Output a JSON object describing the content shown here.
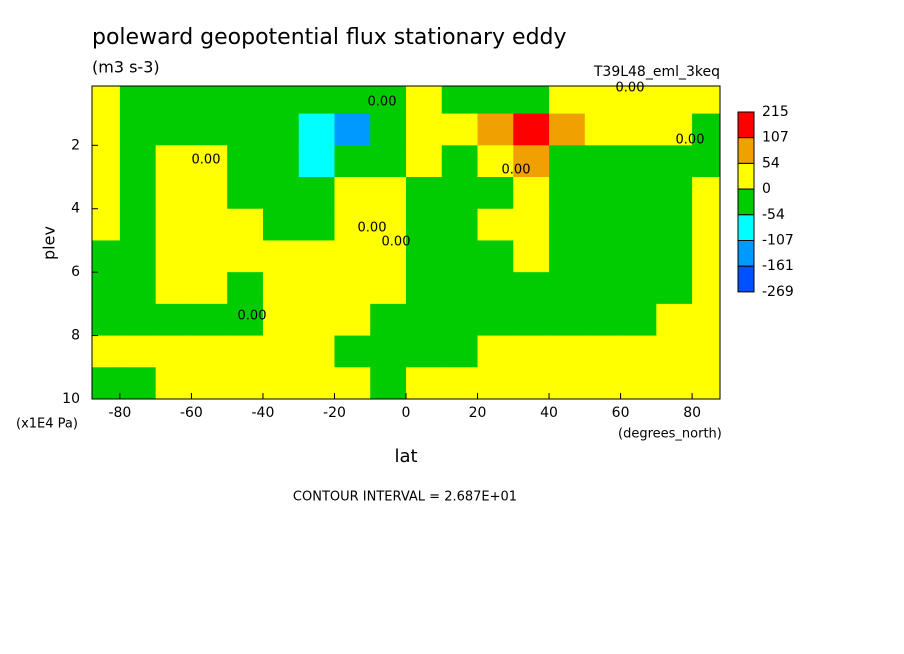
{
  "chart_data": {
    "type": "contour",
    "title": "poleward geopotential flux stationary eddy",
    "units": "(m3 s-3)",
    "dataset": "T39L48_eml_3keq",
    "xlabel": "lat",
    "ylabel": "plev",
    "x_units": "(degrees_north)",
    "y_units": "(x1E4 Pa)",
    "footer": "CONTOUR INTERVAL = 2.687E+01",
    "xlim": [
      -87.8,
      87.8
    ],
    "ylim": [
      10,
      0.13
    ],
    "xticks": [
      -80,
      -60,
      -40,
      -20,
      0,
      20,
      40,
      60,
      80
    ],
    "yticks": [
      2,
      4,
      6,
      8,
      10
    ],
    "x": [
      -85,
      -75,
      -65,
      -55,
      -45,
      -35,
      -25,
      -15,
      -5,
      5,
      15,
      25,
      35,
      45,
      55,
      65,
      75,
      85
    ],
    "y": [
      0.5,
      1.5,
      2.5,
      3.5,
      4.5,
      5.5,
      6.5,
      7.5,
      8.5,
      9.5
    ],
    "z": [
      [
        10,
        -10,
        -10,
        -10,
        -10,
        -10,
        -10,
        -10,
        -10,
        10,
        -10,
        -10,
        -10,
        10,
        10,
        10,
        10,
        10
      ],
      [
        10,
        -10,
        -10,
        -10,
        -10,
        -10,
        -70,
        -120,
        -40,
        10,
        10,
        70,
        120,
        60,
        10,
        10,
        10,
        -10
      ],
      [
        10,
        -10,
        10,
        10,
        -10,
        -10,
        -60,
        -10,
        -10,
        10,
        -10,
        20,
        60,
        -10,
        -10,
        -10,
        -10,
        -10
      ],
      [
        10,
        -10,
        10,
        10,
        -10,
        -10,
        -10,
        10,
        10,
        -10,
        -10,
        -10,
        10,
        -10,
        -10,
        -10,
        -10,
        10
      ],
      [
        10,
        -10,
        10,
        10,
        10,
        -10,
        -10,
        10,
        10,
        -10,
        -10,
        10,
        10,
        -10,
        -10,
        -10,
        -10,
        10
      ],
      [
        -10,
        -10,
        10,
        10,
        10,
        10,
        10,
        10,
        10,
        -10,
        -10,
        -10,
        10,
        -10,
        -10,
        -10,
        -10,
        10
      ],
      [
        -10,
        -10,
        10,
        10,
        -10,
        10,
        10,
        10,
        10,
        -10,
        -10,
        -10,
        -10,
        -10,
        -10,
        -10,
        -10,
        10
      ],
      [
        -10,
        -10,
        -10,
        -10,
        -10,
        10,
        10,
        10,
        -10,
        -10,
        -10,
        -10,
        -10,
        -10,
        -10,
        -10,
        10,
        10
      ],
      [
        10,
        10,
        10,
        10,
        10,
        10,
        10,
        -10,
        -10,
        -10,
        -10,
        10,
        10,
        10,
        10,
        10,
        10,
        10
      ],
      [
        -10,
        -10,
        10,
        10,
        10,
        10,
        10,
        10,
        -10,
        10,
        10,
        10,
        10,
        10,
        10,
        10,
        10,
        10
      ]
    ],
    "levels": [
      215,
      107,
      54,
      0,
      -54,
      -107,
      -161,
      -269
    ],
    "colors": [
      "#ff0000",
      "#f0a000",
      "#ffff00",
      "#00cc00",
      "#00ffff",
      "#0099ff",
      "#0050ff"
    ],
    "contour_labels": [
      "0.00",
      "0.00",
      "0.00",
      "0.00",
      "0.00",
      "0.00",
      "0.00",
      "0.00"
    ]
  }
}
